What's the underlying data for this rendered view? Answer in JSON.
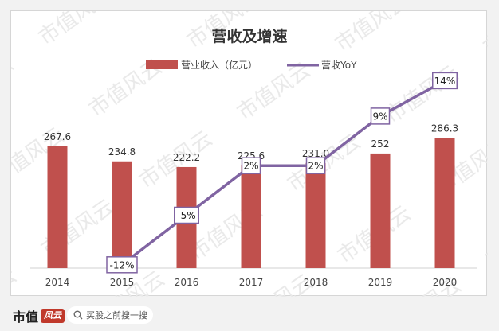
{
  "chart_data": {
    "type": "bar",
    "title": "营收及增速",
    "categories": [
      "2014",
      "2015",
      "2016",
      "2017",
      "2018",
      "2019",
      "2020"
    ],
    "series": [
      {
        "name": "营业收入（亿元）",
        "type": "bar",
        "color": "#c0504d",
        "values": [
          267.6,
          234.8,
          222.2,
          225.6,
          231.0,
          252.0,
          286.3
        ],
        "labels": [
          "267.6",
          "234.8",
          "222.2",
          "225.6",
          "231.0",
          "252",
          "286.3"
        ]
      },
      {
        "name": "营收YoY",
        "type": "line",
        "color": "#8064a2",
        "values": [
          null,
          -12,
          -5,
          2,
          2,
          9,
          14
        ],
        "labels": [
          "",
          "-12%",
          "-5%",
          "2%",
          "2%",
          "9%",
          "14%"
        ]
      }
    ],
    "ylim_bar": [
      0,
      300
    ],
    "ylim_line": [
      -15,
      15
    ],
    "grid": false,
    "legend": "top"
  },
  "watermark": "市值风云",
  "footer": {
    "brand": "市值",
    "brand_badge": "风云",
    "search_icon": "search-icon",
    "search_text": "买股之前搜一搜"
  }
}
